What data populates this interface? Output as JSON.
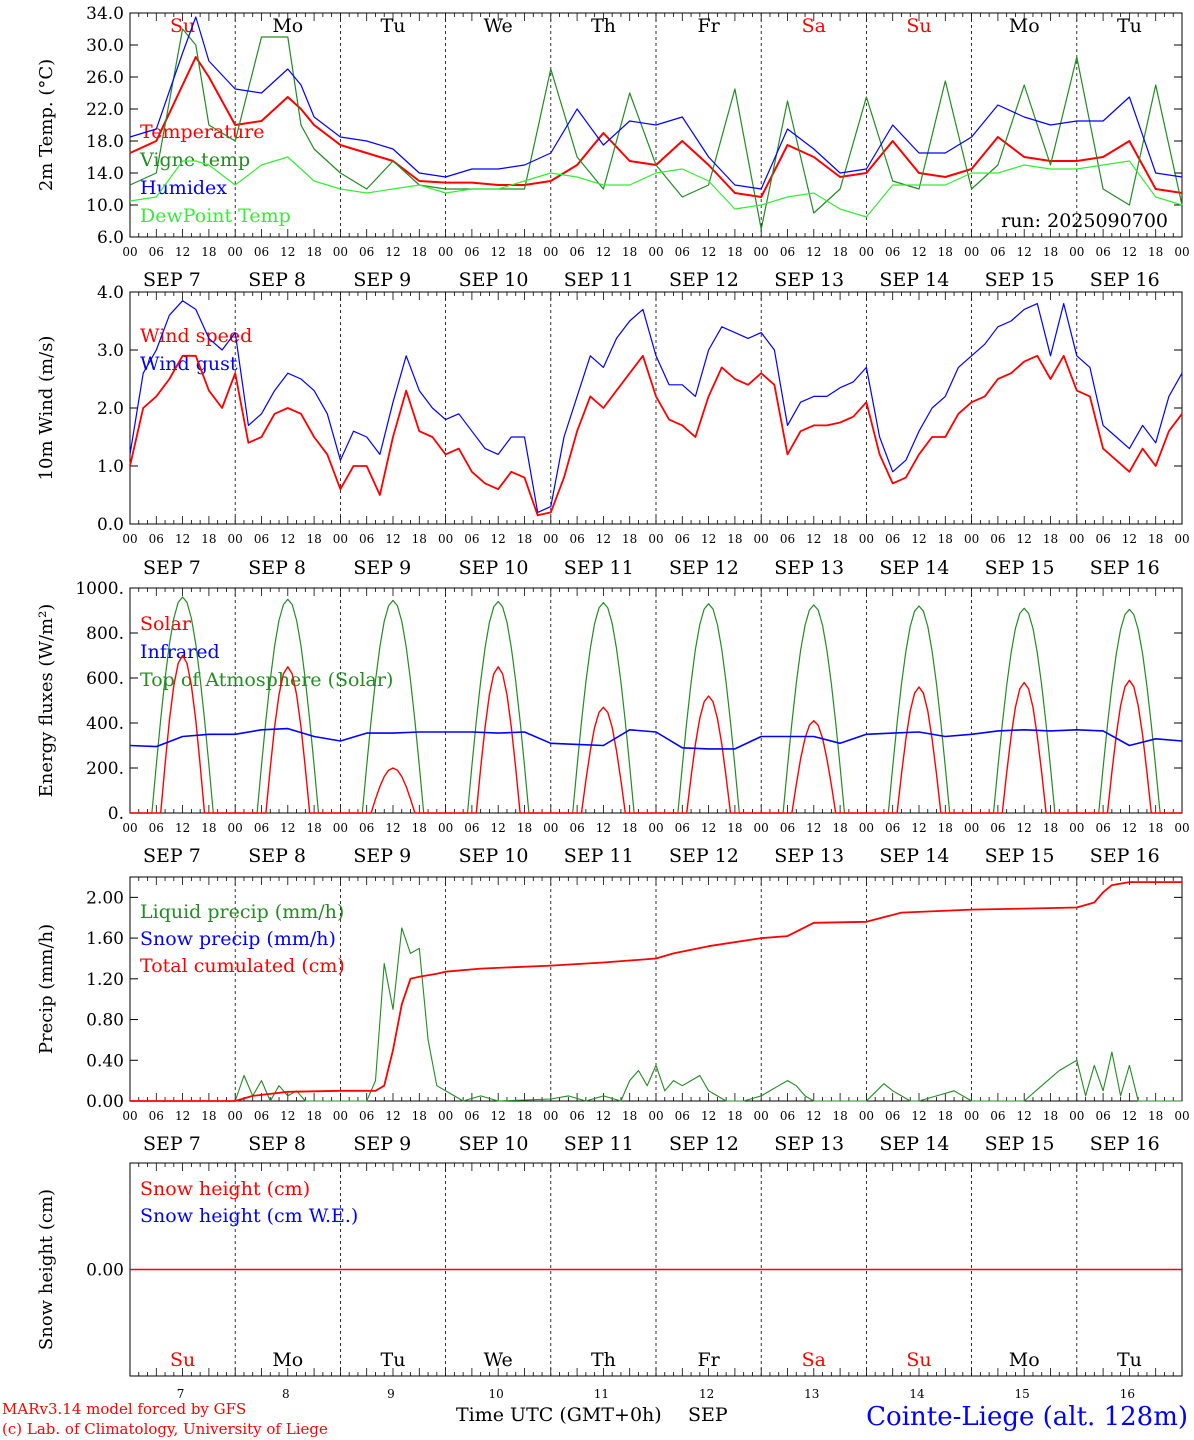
{
  "run_label": "run: 2025090700",
  "day_abbrevs": [
    "Su",
    "Mo",
    "Tu",
    "We",
    "Th",
    "Fr",
    "Sa",
    "Su",
    "Mo",
    "Tu"
  ],
  "day_abbrev_colors": [
    "#ff0000",
    "#000000",
    "#000000",
    "#000000",
    "#000000",
    "#000000",
    "#ff0000",
    "#ff0000",
    "#000000",
    "#000000"
  ],
  "hour_ticks": [
    "00",
    "06",
    "12",
    "18"
  ],
  "hour_tick_end": "00",
  "date_labels": [
    "SEP  7",
    "SEP  8",
    "SEP  9",
    "SEP 10",
    "SEP 11",
    "SEP 12",
    "SEP 13",
    "SEP 14",
    "SEP 15",
    "SEP 16"
  ],
  "day_numbers": [
    "7",
    "8",
    "9",
    "10",
    "11",
    "12",
    "13",
    "14",
    "15",
    "16"
  ],
  "footer": {
    "model": "MARv3.14 model forced by GFS",
    "copyright": "(c) Lab. of Climatology, University of Liege",
    "time_label": "Time UTC (GMT+0h)",
    "month_label": "SEP",
    "station": "Cointe-Liege (alt. 128m)"
  },
  "colors": {
    "red": "#ff0000",
    "green": "#228b22",
    "blue": "#0000ff",
    "light_green": "#33ee33"
  },
  "chart_data": [
    {
      "type": "line",
      "ylabel": "2m Temp. (°C)",
      "ylim": [
        6.0,
        34.0
      ],
      "yticks": [
        "6.0",
        "10.0",
        "14.0",
        "18.0",
        "22.0",
        "26.0",
        "30.0",
        "34.0"
      ],
      "ytick_values": [
        6,
        10,
        14,
        18,
        22,
        26,
        30,
        34
      ],
      "x_unit": "hours since SEP 7 00 UTC",
      "x": [
        0,
        6,
        12,
        15,
        18,
        24,
        30,
        36,
        39,
        42,
        48,
        54,
        60,
        66,
        72,
        78,
        84,
        90,
        96,
        102,
        108,
        114,
        120,
        126,
        132,
        138,
        144,
        150,
        156,
        162,
        168,
        174,
        180,
        186,
        192,
        198,
        204,
        210,
        216,
        222,
        228,
        234,
        240
      ],
      "series": [
        {
          "name": "Temperature",
          "color": "#ff0000",
          "values": [
            16.5,
            18,
            25,
            28.5,
            26,
            20,
            20.5,
            23.5,
            22,
            20,
            17.5,
            16.5,
            15.5,
            13,
            12.8,
            12.8,
            12.5,
            12.5,
            13,
            15,
            19,
            15.5,
            15,
            18,
            15,
            11.5,
            11,
            17.5,
            16,
            13.5,
            14,
            18,
            14,
            13.5,
            14.5,
            18.5,
            16,
            15.5,
            15.5,
            16,
            18,
            12,
            11.5
          ]
        },
        {
          "name": "Vigne temp",
          "color": "#228b22",
          "values": [
            12.5,
            14,
            32,
            30,
            20,
            18,
            31,
            31,
            20,
            17,
            14,
            12,
            15.5,
            12.5,
            12,
            12,
            12,
            12,
            27,
            16,
            12,
            24,
            15,
            11,
            12.5,
            24.5,
            7,
            23,
            9,
            12,
            23.5,
            13,
            12,
            25.5,
            12,
            15,
            25,
            15,
            28.5,
            12,
            10,
            25,
            10
          ]
        },
        {
          "name": "Humidex",
          "color": "#0000ff",
          "values": [
            18.5,
            19.5,
            29,
            33.5,
            28,
            24.5,
            24,
            27,
            25,
            21,
            18.5,
            18,
            17,
            14,
            13.5,
            14.5,
            14.5,
            15,
            16.5,
            22,
            17.5,
            20.5,
            20,
            21,
            16,
            12.5,
            12,
            19.5,
            17,
            14,
            14.5,
            20,
            16.5,
            16.5,
            18.5,
            22.5,
            21,
            20,
            20.5,
            20.5,
            23.5,
            14,
            13.5
          ]
        },
        {
          "name": "DewPoint Temp",
          "color": "#33ee33",
          "values": [
            10.5,
            11,
            15.5,
            15.5,
            15,
            12.5,
            15,
            16,
            14.5,
            13,
            12,
            11.5,
            12,
            12.5,
            11.5,
            12,
            12,
            13,
            14,
            13.5,
            12.5,
            12.5,
            14,
            14.5,
            13,
            9.5,
            10,
            11,
            11.5,
            9.5,
            8.5,
            12.5,
            12.5,
            12.5,
            14,
            14,
            15,
            14.5,
            14.5,
            15,
            15.5,
            11,
            10
          ]
        }
      ]
    },
    {
      "type": "line",
      "ylabel": "10m Wind (m/s)",
      "ylim": [
        0.0,
        4.0
      ],
      "yticks": [
        "0.0",
        "1.0",
        "2.0",
        "3.0",
        "4.0"
      ],
      "ytick_values": [
        0,
        1,
        2,
        3,
        4
      ],
      "x_unit": "hours since SEP 7 00 UTC",
      "x": [
        0,
        3,
        6,
        9,
        12,
        15,
        18,
        21,
        24,
        27,
        30,
        33,
        36,
        39,
        42,
        45,
        48,
        51,
        54,
        57,
        60,
        63,
        66,
        69,
        72,
        75,
        78,
        81,
        84,
        87,
        90,
        93,
        96,
        99,
        102,
        105,
        108,
        111,
        114,
        117,
        120,
        123,
        126,
        129,
        132,
        135,
        138,
        141,
        144,
        147,
        150,
        153,
        156,
        159,
        162,
        165,
        168,
        171,
        174,
        177,
        180,
        183,
        186,
        189,
        192,
        195,
        198,
        201,
        204,
        207,
        210,
        213,
        216,
        219,
        222,
        225,
        228,
        231,
        234,
        237,
        240
      ],
      "series": [
        {
          "name": "Wind speed",
          "color": "#ff0000",
          "values": [
            1.0,
            2.0,
            2.2,
            2.5,
            2.9,
            2.9,
            2.3,
            2.0,
            2.6,
            1.4,
            1.5,
            1.9,
            2.0,
            1.9,
            1.5,
            1.2,
            0.6,
            1.0,
            1.0,
            0.5,
            1.5,
            2.3,
            1.6,
            1.5,
            1.2,
            1.3,
            0.9,
            0.7,
            0.6,
            0.9,
            0.8,
            0.15,
            0.2,
            0.8,
            1.6,
            2.2,
            2.0,
            2.3,
            2.6,
            2.9,
            2.2,
            1.8,
            1.7,
            1.5,
            2.2,
            2.7,
            2.5,
            2.4,
            2.6,
            2.4,
            1.2,
            1.6,
            1.7,
            1.7,
            1.75,
            1.85,
            2.1,
            1.2,
            0.7,
            0.8,
            1.2,
            1.5,
            1.5,
            1.9,
            2.1,
            2.2,
            2.5,
            2.6,
            2.8,
            2.9,
            2.5,
            2.9,
            2.3,
            2.2,
            1.3,
            1.1,
            0.9,
            1.3,
            1.0,
            1.6,
            1.9
          ]
        }
      ],
      "series_extra": [
        {
          "name": "Wind gust",
          "color": "#0000ff",
          "values": [
            1.2,
            2.6,
            3.0,
            3.6,
            3.85,
            3.7,
            3.2,
            3.0,
            3.3,
            1.7,
            1.9,
            2.3,
            2.6,
            2.5,
            2.3,
            1.9,
            1.1,
            1.6,
            1.5,
            1.2,
            2.1,
            2.9,
            2.3,
            2.0,
            1.8,
            1.9,
            1.6,
            1.3,
            1.2,
            1.5,
            1.5,
            0.2,
            0.3,
            1.5,
            2.2,
            2.9,
            2.7,
            3.2,
            3.5,
            3.7,
            2.9,
            2.4,
            2.4,
            2.2,
            3.0,
            3.4,
            3.3,
            3.2,
            3.3,
            3.0,
            1.7,
            2.1,
            2.2,
            2.2,
            2.35,
            2.45,
            2.7,
            1.5,
            0.9,
            1.1,
            1.6,
            2.0,
            2.2,
            2.7,
            2.9,
            3.1,
            3.4,
            3.5,
            3.7,
            3.8,
            2.9,
            3.8,
            2.9,
            2.7,
            1.7,
            1.5,
            1.3,
            1.7,
            1.4,
            2.2,
            2.6
          ]
        }
      ]
    },
    {
      "type": "line",
      "ylabel": "Energy fluxes (W/m²)",
      "ylim": [
        0,
        1000
      ],
      "yticks": [
        "0.",
        "200.",
        "400.",
        "600.",
        "800.",
        "1000."
      ],
      "ytick_values": [
        0,
        200,
        400,
        600,
        800,
        1000
      ],
      "x_unit": "hours since SEP 7 00 UTC",
      "series": [
        {
          "name": "Solar",
          "color": "#ff0000",
          "day_peaks": [
            700,
            650,
            200,
            650,
            470,
            520,
            410,
            560,
            580,
            590
          ]
        },
        {
          "name": "Infrared",
          "color": "#0000ff",
          "x": [
            0,
            6,
            12,
            18,
            24,
            30,
            36,
            42,
            48,
            54,
            60,
            66,
            72,
            78,
            84,
            90,
            96,
            102,
            108,
            114,
            120,
            126,
            132,
            138,
            144,
            150,
            156,
            162,
            168,
            174,
            180,
            186,
            192,
            198,
            204,
            210,
            216,
            222,
            228,
            234,
            240
          ],
          "values": [
            300,
            295,
            340,
            350,
            350,
            370,
            375,
            340,
            320,
            355,
            355,
            360,
            360,
            360,
            355,
            360,
            310,
            305,
            300,
            370,
            360,
            290,
            285,
            285,
            340,
            340,
            340,
            310,
            350,
            355,
            360,
            340,
            350,
            365,
            370,
            365,
            370,
            365,
            300,
            330,
            320
          ]
        },
        {
          "name": "Top of Atmosphere (Solar)",
          "color": "#228b22",
          "day_peaks": [
            960,
            950,
            945,
            940,
            935,
            930,
            925,
            920,
            910,
            905
          ]
        }
      ]
    },
    {
      "type": "line",
      "ylabel": "Precip (mm/h)",
      "ylim": [
        0.0,
        2.2
      ],
      "yticks": [
        "0.00",
        "0.40",
        "0.80",
        "1.20",
        "1.60",
        "2.00"
      ],
      "ytick_values": [
        0,
        0.4,
        0.8,
        1.2,
        1.6,
        2.0
      ],
      "x_unit": "hours since SEP 7 00 UTC",
      "series": [
        {
          "name": "Liquid precip (mm/h)",
          "color": "#228b22",
          "x": [
            0,
            24,
            26,
            28,
            30,
            32,
            34,
            36,
            38,
            40,
            48,
            54,
            56,
            58,
            60,
            62,
            64,
            66,
            68,
            70,
            72,
            74,
            76,
            80,
            84,
            96,
            100,
            104,
            108,
            112,
            114,
            116,
            118,
            120,
            122,
            124,
            126,
            128,
            130,
            132,
            134,
            136,
            140,
            144,
            148,
            150,
            152,
            154,
            156,
            160,
            164,
            168,
            172,
            174,
            176,
            178,
            180,
            184,
            188,
            192,
            196,
            200,
            204,
            208,
            212,
            216,
            218,
            220,
            222,
            224,
            226,
            228,
            230,
            232,
            234,
            240
          ],
          "values": [
            0,
            0,
            0.25,
            0.05,
            0.2,
            0,
            0.15,
            0.05,
            0.1,
            0,
            0,
            0,
            0.2,
            1.35,
            0.9,
            1.7,
            1.45,
            1.5,
            0.6,
            0.15,
            0.1,
            0.05,
            0,
            0.05,
            0,
            0.02,
            0.05,
            0,
            0.05,
            0,
            0.2,
            0.3,
            0.15,
            0.35,
            0.1,
            0.2,
            0.15,
            0.2,
            0.25,
            0.1,
            0.05,
            0,
            0,
            0.05,
            0.15,
            0.2,
            0.15,
            0.05,
            0,
            0,
            0,
            0,
            0.17,
            0.1,
            0.05,
            0,
            0,
            0.05,
            0.1,
            0,
            0,
            0,
            0,
            0.15,
            0.3,
            0.4,
            0.05,
            0.35,
            0.1,
            0.48,
            0.05,
            0.35,
            0,
            0,
            0,
            0
          ]
        },
        {
          "name": "Snow precip (mm/h)",
          "color": "#0000ff",
          "values": []
        },
        {
          "name": "Total cumulated (cm)",
          "color": "#ff0000",
          "x": [
            0,
            24,
            28,
            36,
            48,
            56,
            58,
            60,
            62,
            64,
            66,
            70,
            72,
            80,
            96,
            108,
            120,
            124,
            132,
            144,
            150,
            156,
            168,
            176,
            192,
            204,
            216,
            220,
            222,
            224,
            228,
            240
          ],
          "values": [
            0,
            0,
            0.05,
            0.09,
            0.1,
            0.1,
            0.15,
            0.5,
            0.95,
            1.2,
            1.22,
            1.25,
            1.27,
            1.3,
            1.33,
            1.36,
            1.4,
            1.45,
            1.52,
            1.6,
            1.62,
            1.75,
            1.76,
            1.85,
            1.88,
            1.89,
            1.9,
            1.95,
            2.05,
            2.12,
            2.15,
            2.15
          ]
        }
      ]
    },
    {
      "type": "line",
      "ylabel": "Snow height (cm)",
      "ylim": [
        -0.1,
        0.1
      ],
      "yticks": [
        "0.00"
      ],
      "ytick_values": [
        0
      ],
      "x_unit": "hours since SEP 7 00 UTC",
      "series": [
        {
          "name": "Snow height (cm)",
          "color": "#ff0000",
          "x": [
            0,
            240
          ],
          "values": [
            0,
            0
          ]
        },
        {
          "name": "Snow height (cm W.E.)",
          "color": "#0000ff",
          "x": [],
          "values": []
        }
      ]
    }
  ]
}
